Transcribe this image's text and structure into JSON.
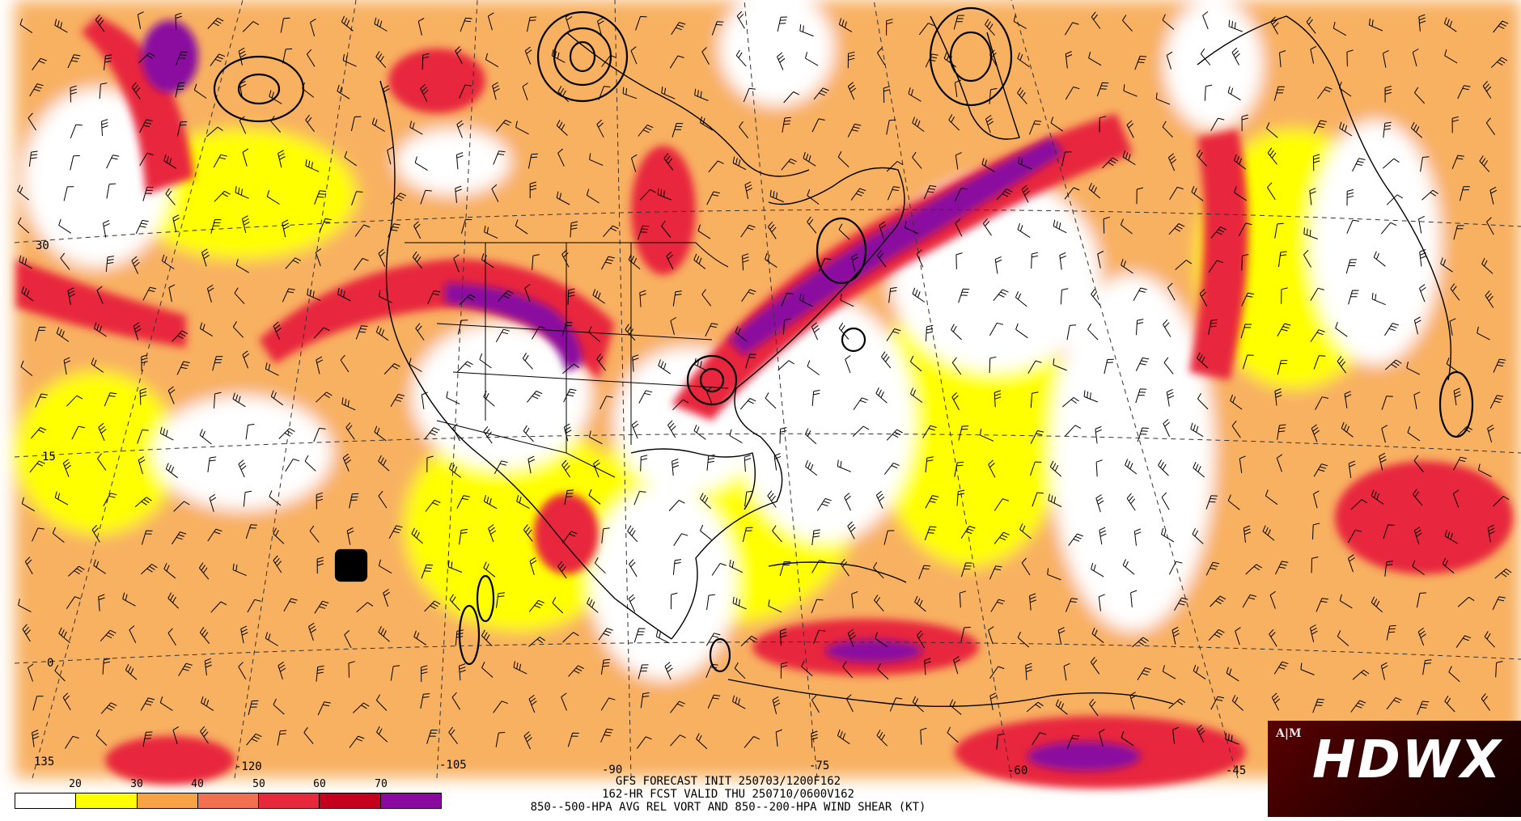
{
  "colors": {
    "shear_20_30": "#ffff00",
    "shear_30_40": "#f7a244",
    "shear_40_50": "#f07050",
    "shear_50_60": "#e8283c",
    "shear_60_70": "#c4001c",
    "shear_70_plus": "#8a0aa0",
    "background": "#ffffff",
    "logo_bg": "#3a0000"
  },
  "map": {
    "latitude_labels": [
      "30",
      "15",
      "0"
    ],
    "longitude_labels": [
      "135",
      "-120",
      "-105",
      "-90",
      "-75",
      "-60",
      "-45"
    ]
  },
  "legend": {
    "ticks": [
      "20",
      "30",
      "40",
      "50",
      "60",
      "70"
    ],
    "swatch_colors": [
      "#ffffff",
      "#ffff00",
      "#f7a244",
      "#f07050",
      "#e8283c",
      "#c4001c",
      "#8a0aa0"
    ]
  },
  "caption": {
    "line1": "GFS FORECAST INIT 250703/1200F162",
    "line2": "162-HR FCST VALID THU 250710/0600V162",
    "line3": "850--500-HPA AVG REL VORT AND 850--200-HPA WIND SHEAR (KT)"
  },
  "logo": {
    "text": "HDWX",
    "seal": "A|M"
  }
}
